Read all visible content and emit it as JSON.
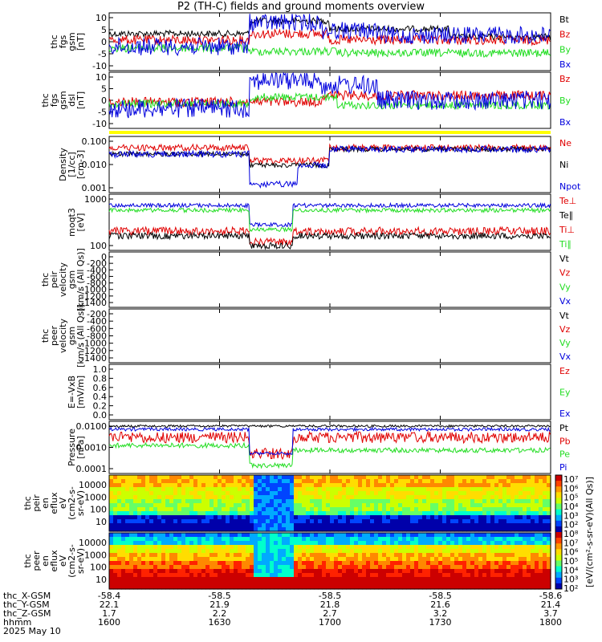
{
  "title": "P2 (TH-C) fields and ground moments overview",
  "colors": {
    "black": "#000000",
    "red": "#e00000",
    "green": "#22dd22",
    "blue": "#0000dd",
    "yellow": "#ffff00"
  },
  "chart_data": [
    {
      "type": "line",
      "ylabel": [
        "thc",
        "fgs",
        "gsm",
        "[nT]"
      ],
      "yticks": [
        "10",
        "5",
        "0",
        "-5",
        "-10"
      ],
      "ylim": [
        -10,
        12
      ],
      "legend": [
        {
          "label": "Bt",
          "color": "black"
        },
        {
          "label": "Bz",
          "color": "red"
        },
        {
          "label": "By",
          "color": "green"
        },
        {
          "label": "Bx",
          "color": "blue"
        }
      ]
    },
    {
      "type": "line",
      "ylabel": [
        "thc",
        "fgs",
        "gsm",
        "dsl",
        "[nT]"
      ],
      "yticks": [
        "10",
        "5",
        "0",
        "-5",
        "-10"
      ],
      "ylim": [
        -13,
        12
      ],
      "legend": [
        {
          "label": "Bz",
          "color": "red"
        },
        {
          "label": "By",
          "color": "green"
        },
        {
          "label": "Bx",
          "color": "blue"
        }
      ]
    },
    {
      "type": "line",
      "ylabel": [
        "Density",
        "[1/cc]",
        "[cm-3]"
      ],
      "yticks": [
        "0.100",
        "0.010",
        "0.001"
      ],
      "log": true,
      "legend": [
        {
          "label": "Ne",
          "color": "red"
        },
        {
          "label": "Ni",
          "color": "black"
        },
        {
          "label": "Npot",
          "color": "blue"
        }
      ]
    },
    {
      "type": "line",
      "ylabel": [
        "moqt3",
        "[eV]"
      ],
      "yticks": [
        "1000",
        "100"
      ],
      "log": true,
      "legend": [
        {
          "label": "Te⊥",
          "color": "red"
        },
        {
          "label": "Te∥",
          "color": "black"
        },
        {
          "label": "Ti⊥",
          "color": "red"
        },
        {
          "label": "Ti∥",
          "color": "green"
        }
      ]
    },
    {
      "type": "line",
      "ylabel": [
        "thc",
        "peir",
        "velocity",
        "gsm",
        "[km/s (All Qs)]"
      ],
      "yticks": [
        "0",
        "-200",
        "-400",
        "-600",
        "-800",
        "-1000",
        "-1200",
        "-1400"
      ],
      "ylim": [
        -1450,
        0
      ],
      "legend": [
        {
          "label": "Vt",
          "color": "black"
        },
        {
          "label": "Vz",
          "color": "red"
        },
        {
          "label": "Vy",
          "color": "green"
        },
        {
          "label": "Vx",
          "color": "blue"
        }
      ]
    },
    {
      "type": "line",
      "ylabel": [
        "thc",
        "peer",
        "velocity",
        "gsm",
        "[km/s (All Qs)]"
      ],
      "yticks": [
        "-200",
        "-400",
        "-600",
        "-800",
        "-1000",
        "-1200",
        "-1400"
      ],
      "ylim": [
        -1450,
        -100
      ],
      "legend": [
        {
          "label": "Vt",
          "color": "black"
        },
        {
          "label": "Vz",
          "color": "red"
        },
        {
          "label": "Vy",
          "color": "green"
        },
        {
          "label": "Vx",
          "color": "blue"
        }
      ]
    },
    {
      "type": "line",
      "ylabel": [
        "E=-VxB",
        "[mV/m]"
      ],
      "yticks": [
        "1.0",
        "0.8",
        "0.6",
        "0.4",
        "0.2",
        "0.0"
      ],
      "ylim": [
        -0.02,
        1.02
      ],
      "legend": [
        {
          "label": "Ez",
          "color": "red"
        },
        {
          "label": "Ey",
          "color": "green"
        },
        {
          "label": "Ex",
          "color": "blue"
        }
      ]
    },
    {
      "type": "line",
      "ylabel": [
        "Pressure",
        "[nPa]"
      ],
      "yticks": [
        "0.0100",
        "0.0010",
        "0.0001"
      ],
      "log": true,
      "legend": [
        {
          "label": "Pt",
          "color": "black"
        },
        {
          "label": "Pb",
          "color": "red"
        },
        {
          "label": "Pe",
          "color": "green"
        },
        {
          "label": "Pi",
          "color": "blue"
        }
      ]
    },
    {
      "type": "heatmap",
      "ylabel": [
        "thc",
        "peir",
        "en",
        "eflux",
        "eV",
        "(cm2-s-",
        "sr-eV)"
      ],
      "yticks": [
        "10000",
        "1000",
        "100",
        "10"
      ]
    },
    {
      "type": "heatmap",
      "ylabel": [
        "thc",
        "peer",
        "en",
        "eflux",
        "eV",
        "(cm2-s-",
        "sr-eV)"
      ],
      "yticks": [
        "10000",
        "1000",
        "100",
        "10"
      ]
    }
  ],
  "colorbar": {
    "labels": [
      "10⁷",
      "10⁶",
      "10⁵",
      "10⁴",
      "10³",
      "10²",
      "10⁸",
      "10⁷",
      "10⁶",
      "10⁵",
      "10⁴",
      "10³",
      "10²"
    ],
    "title": "[eV/(cm²-s-sr-eV)(All Qs)]"
  },
  "time_axis": {
    "rows": [
      {
        "label": "thc_X-GSM",
        "values": [
          "-58.4",
          "-58.5",
          "-58.5",
          "-58.5",
          "-58.6"
        ]
      },
      {
        "label": "thc_Y-GSM",
        "values": [
          "22.1",
          "21.9",
          "21.8",
          "21.6",
          "21.4"
        ]
      },
      {
        "label": "thc_Z-GSM",
        "values": [
          "1.7",
          "2.2",
          "2.7",
          "3.2",
          "3.7"
        ]
      },
      {
        "label": "hhmm",
        "values": [
          "1600",
          "1630",
          "1700",
          "1730",
          "1800"
        ]
      }
    ],
    "date": "2025 May 10"
  }
}
